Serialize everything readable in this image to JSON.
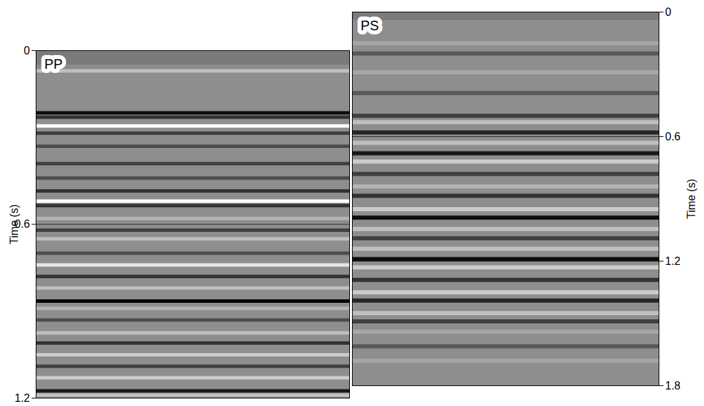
{
  "chart_data": [
    {
      "type": "seismic_section",
      "title": "PP",
      "ylabel": "Time (s)",
      "ylim": [
        0,
        1.2
      ],
      "yticks": [
        0,
        0.6,
        1.2
      ],
      "grid": true,
      "tick_labels": "y",
      "no_data_until": 0.05,
      "amplitude_range": [
        -1,
        1
      ],
      "events": {
        "time": [
          0.07,
          0.215,
          0.23,
          0.26,
          0.285,
          0.33,
          0.39,
          0.44,
          0.485,
          0.52,
          0.535,
          0.58,
          0.62,
          0.65,
          0.7,
          0.74,
          0.78,
          0.82,
          0.865,
          0.89,
          0.93,
          0.975,
          1.01,
          1.05,
          1.09,
          1.13,
          1.175,
          1.19
        ],
        "amplitude": [
          0.5,
          -0.9,
          -0.6,
          1,
          -0.5,
          -0.4,
          -0.5,
          -0.4,
          -0.6,
          1,
          -0.6,
          0.4,
          -0.5,
          0.5,
          -0.4,
          0.8,
          -0.6,
          0.5,
          -1,
          0.4,
          -0.4,
          0.5,
          -0.6,
          0.6,
          -0.5,
          0.6,
          -0.8,
          0.5
        ]
      }
    },
    {
      "type": "seismic_section",
      "title": "PS",
      "ylabel": "Time (s)",
      "ylim": [
        0,
        1.8
      ],
      "yticks": [
        0,
        0.6,
        1.2,
        1.8
      ],
      "grid": true,
      "tick_labels": "y",
      "no_data_until": 0.04,
      "amplitude_range": [
        -1,
        1
      ],
      "events": {
        "time": [
          0.15,
          0.2,
          0.29,
          0.39,
          0.5,
          0.53,
          0.58,
          0.63,
          0.68,
          0.72,
          0.78,
          0.84,
          0.885,
          0.95,
          0.99,
          1.045,
          1.09,
          1.14,
          1.19,
          1.23,
          1.29,
          1.35,
          1.39,
          1.45,
          1.49,
          1.54,
          1.61,
          1.68
        ],
        "amplitude": [
          0.3,
          -0.3,
          0.3,
          -0.3,
          -0.5,
          0.5,
          -0.7,
          0.5,
          -0.8,
          0.6,
          -0.5,
          0.4,
          -0.6,
          0.6,
          -0.9,
          0.5,
          -0.5,
          0.5,
          -0.9,
          0.6,
          -0.6,
          0.6,
          -0.7,
          0.5,
          -0.5,
          0.3,
          -0.3,
          0.3
        ]
      }
    }
  ]
}
